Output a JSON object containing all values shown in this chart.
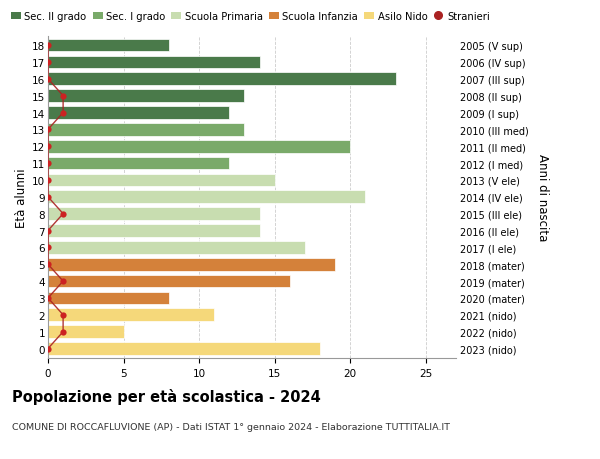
{
  "ages": [
    18,
    17,
    16,
    15,
    14,
    13,
    12,
    11,
    10,
    9,
    8,
    7,
    6,
    5,
    4,
    3,
    2,
    1,
    0
  ],
  "right_labels": [
    "2005 (V sup)",
    "2006 (IV sup)",
    "2007 (III sup)",
    "2008 (II sup)",
    "2009 (I sup)",
    "2010 (III med)",
    "2011 (II med)",
    "2012 (I med)",
    "2013 (V ele)",
    "2014 (IV ele)",
    "2015 (III ele)",
    "2016 (II ele)",
    "2017 (I ele)",
    "2018 (mater)",
    "2019 (mater)",
    "2020 (mater)",
    "2021 (nido)",
    "2022 (nido)",
    "2023 (nido)"
  ],
  "values": [
    8,
    14,
    23,
    13,
    12,
    13,
    20,
    12,
    15,
    21,
    14,
    14,
    17,
    19,
    16,
    8,
    11,
    5,
    18
  ],
  "stranieri": [
    0,
    0,
    0,
    1,
    1,
    0,
    0,
    0,
    0,
    0,
    1,
    0,
    0,
    0,
    1,
    0,
    1,
    1,
    0
  ],
  "bar_colors": [
    "#4a7a4a",
    "#4a7a4a",
    "#4a7a4a",
    "#4a7a4a",
    "#4a7a4a",
    "#7aaa6a",
    "#7aaa6a",
    "#7aaa6a",
    "#c8ddb0",
    "#c8ddb0",
    "#c8ddb0",
    "#c8ddb0",
    "#c8ddb0",
    "#d4813a",
    "#d4813a",
    "#d4813a",
    "#f5d87a",
    "#f5d87a",
    "#f5d87a"
  ],
  "legend_labels": [
    "Sec. II grado",
    "Sec. I grado",
    "Scuola Primaria",
    "Scuola Infanzia",
    "Asilo Nido",
    "Stranieri"
  ],
  "legend_colors": [
    "#4a7a4a",
    "#7aaa6a",
    "#c8ddb0",
    "#d4813a",
    "#f5d87a",
    "#aa2222"
  ],
  "ylabel_left": "Età alunni",
  "ylabel_right": "Anni di nascita",
  "title": "Popolazione per età scolastica - 2024",
  "subtitle": "COMUNE DI ROCCAFLUVIONE (AP) - Dati ISTAT 1° gennaio 2024 - Elaborazione TUTTITALIA.IT",
  "xlim": [
    0,
    27
  ],
  "xticks": [
    0,
    5,
    10,
    15,
    20,
    25
  ],
  "background_color": "#ffffff",
  "grid_color": "#cccccc"
}
